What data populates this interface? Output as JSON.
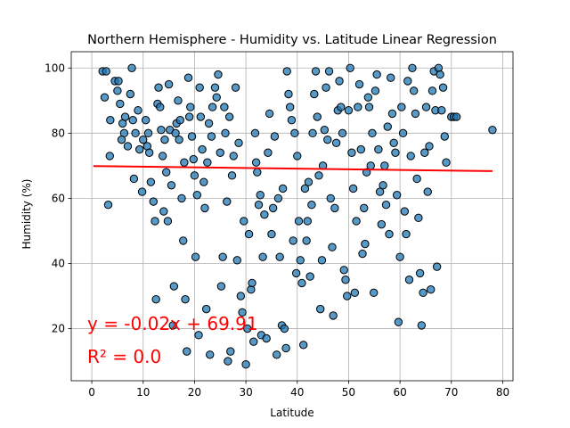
{
  "chart_data": {
    "type": "scatter",
    "title": "Northern Hemisphere - Humidity vs. Latitude Linear Regression",
    "xlabel": "Latitude",
    "ylabel": "Humidity (%)",
    "xlim": [
      -4,
      82
    ],
    "ylim": [
      4,
      105
    ],
    "xticks": [
      0,
      10,
      20,
      30,
      40,
      50,
      60,
      70,
      80
    ],
    "yticks": [
      20,
      40,
      60,
      80,
      100
    ],
    "grid": true,
    "point_color": "#1f77b4",
    "point_edge_color": "#000000",
    "point_alpha": 0.75,
    "regression": {
      "slope": -0.02,
      "intercept": 69.91,
      "x_range": [
        0.3,
        78
      ],
      "color": "#ff0000"
    },
    "annotations": [
      "y = -0.02x + 69.91",
      "R² = 0.0"
    ],
    "annotation_color": "#ff0000",
    "points": [
      [
        2.1,
        99
      ],
      [
        2.8,
        99
      ],
      [
        2.5,
        91
      ],
      [
        3.6,
        84
      ],
      [
        3.5,
        73
      ],
      [
        3.2,
        58
      ],
      [
        4.5,
        96
      ],
      [
        5,
        93
      ],
      [
        5.2,
        96
      ],
      [
        5.5,
        89
      ],
      [
        6,
        83
      ],
      [
        6.5,
        85
      ],
      [
        6.3,
        80
      ],
      [
        5.8,
        78
      ],
      [
        7,
        76
      ],
      [
        7.5,
        92
      ],
      [
        7.8,
        100
      ],
      [
        8,
        84
      ],
      [
        8.5,
        80
      ],
      [
        9,
        87
      ],
      [
        8.2,
        66
      ],
      [
        9.3,
        75
      ],
      [
        9.8,
        62
      ],
      [
        10,
        78
      ],
      [
        10.5,
        84
      ],
      [
        10.8,
        76
      ],
      [
        11,
        80
      ],
      [
        11.5,
        65
      ],
      [
        11.2,
        74
      ],
      [
        12,
        59
      ],
      [
        12.3,
        53
      ],
      [
        12.5,
        29
      ],
      [
        12.8,
        89
      ],
      [
        13,
        94
      ],
      [
        13.3,
        88
      ],
      [
        13.5,
        81
      ],
      [
        13.8,
        73
      ],
      [
        14,
        56
      ],
      [
        14.2,
        78
      ],
      [
        14.5,
        68
      ],
      [
        14.8,
        53
      ],
      [
        15,
        95
      ],
      [
        15.2,
        81
      ],
      [
        15.5,
        64
      ],
      [
        15.8,
        21
      ],
      [
        16,
        33
      ],
      [
        16.3,
        80
      ],
      [
        16.5,
        83
      ],
      [
        16.8,
        90
      ],
      [
        17,
        78
      ],
      [
        17.2,
        84
      ],
      [
        17.5,
        60
      ],
      [
        17.8,
        47
      ],
      [
        18,
        71
      ],
      [
        18.2,
        29
      ],
      [
        18.5,
        13
      ],
      [
        18.8,
        97
      ],
      [
        19,
        85
      ],
      [
        19.2,
        88
      ],
      [
        19.5,
        79
      ],
      [
        19.8,
        72
      ],
      [
        20,
        67
      ],
      [
        20.2,
        42
      ],
      [
        20.5,
        61
      ],
      [
        20.8,
        18
      ],
      [
        21,
        94
      ],
      [
        21.2,
        85
      ],
      [
        21.5,
        75
      ],
      [
        21.8,
        65
      ],
      [
        22,
        57
      ],
      [
        22.3,
        26
      ],
      [
        22.5,
        71
      ],
      [
        22.8,
        83
      ],
      [
        23,
        12
      ],
      [
        23.3,
        79
      ],
      [
        23.5,
        88
      ],
      [
        24,
        94
      ],
      [
        24.3,
        91
      ],
      [
        24.6,
        98
      ],
      [
        25,
        74
      ],
      [
        25.2,
        33
      ],
      [
        25.5,
        42
      ],
      [
        25.8,
        88
      ],
      [
        26,
        80
      ],
      [
        26.3,
        59
      ],
      [
        26.5,
        10
      ],
      [
        26.8,
        85
      ],
      [
        27,
        13
      ],
      [
        27.3,
        67
      ],
      [
        27.6,
        73
      ],
      [
        28,
        94
      ],
      [
        28.3,
        41
      ],
      [
        28.6,
        77
      ],
      [
        29,
        30
      ],
      [
        29.3,
        25
      ],
      [
        29.6,
        53
      ],
      [
        30,
        9
      ],
      [
        30.3,
        20
      ],
      [
        30.6,
        49
      ],
      [
        31,
        32
      ],
      [
        31.2,
        34
      ],
      [
        31.5,
        16
      ],
      [
        31.8,
        80
      ],
      [
        32,
        71
      ],
      [
        32.2,
        68
      ],
      [
        32.5,
        58
      ],
      [
        32.8,
        61
      ],
      [
        33,
        18
      ],
      [
        33.3,
        42
      ],
      [
        33.6,
        55
      ],
      [
        34,
        17
      ],
      [
        34.3,
        74
      ],
      [
        34.6,
        86
      ],
      [
        35,
        49
      ],
      [
        35.3,
        57
      ],
      [
        35.6,
        79
      ],
      [
        36,
        12
      ],
      [
        36.3,
        60
      ],
      [
        36.6,
        42
      ],
      [
        37,
        21
      ],
      [
        37.2,
        63
      ],
      [
        37.5,
        20
      ],
      [
        37.8,
        14
      ],
      [
        38,
        99
      ],
      [
        38.3,
        92
      ],
      [
        38.6,
        88
      ],
      [
        38.9,
        84
      ],
      [
        39.2,
        47
      ],
      [
        39.5,
        80
      ],
      [
        39.8,
        37
      ],
      [
        40,
        73
      ],
      [
        40.3,
        53
      ],
      [
        40.6,
        41
      ],
      [
        40.9,
        34
      ],
      [
        41.2,
        15
      ],
      [
        41.5,
        63
      ],
      [
        41.8,
        47
      ],
      [
        42,
        53
      ],
      [
        42.2,
        65
      ],
      [
        42.5,
        36
      ],
      [
        42.8,
        58
      ],
      [
        43,
        80
      ],
      [
        43.3,
        92
      ],
      [
        43.6,
        99
      ],
      [
        43.9,
        85
      ],
      [
        44.2,
        67
      ],
      [
        44.5,
        26
      ],
      [
        44.8,
        41
      ],
      [
        45,
        70
      ],
      [
        45.3,
        81
      ],
      [
        45.6,
        94
      ],
      [
        45.9,
        78
      ],
      [
        46.2,
        99
      ],
      [
        46.5,
        60
      ],
      [
        46.8,
        45
      ],
      [
        47,
        24
      ],
      [
        47.3,
        57
      ],
      [
        47.6,
        77
      ],
      [
        47.9,
        87
      ],
      [
        48.2,
        96
      ],
      [
        48.5,
        88
      ],
      [
        48.8,
        80
      ],
      [
        49.1,
        38
      ],
      [
        49.4,
        35
      ],
      [
        49.7,
        30
      ],
      [
        50,
        87
      ],
      [
        50.3,
        100
      ],
      [
        50.6,
        74
      ],
      [
        50.9,
        63
      ],
      [
        51.2,
        31
      ],
      [
        51.5,
        53
      ],
      [
        51.8,
        88
      ],
      [
        52.1,
        95
      ],
      [
        52.4,
        75
      ],
      [
        52.7,
        43
      ],
      [
        53,
        57
      ],
      [
        53.2,
        46
      ],
      [
        53.5,
        68
      ],
      [
        53.8,
        91
      ],
      [
        54,
        88
      ],
      [
        54.3,
        70
      ],
      [
        54.6,
        80
      ],
      [
        54.9,
        31
      ],
      [
        55.2,
        93
      ],
      [
        55.5,
        98
      ],
      [
        55.8,
        75
      ],
      [
        56.1,
        62
      ],
      [
        56.4,
        52
      ],
      [
        56.7,
        64
      ],
      [
        57,
        70
      ],
      [
        57.3,
        58
      ],
      [
        57.6,
        82
      ],
      [
        57.9,
        49
      ],
      [
        58.2,
        97
      ],
      [
        58.5,
        86
      ],
      [
        58.8,
        77
      ],
      [
        59.1,
        74
      ],
      [
        59.4,
        61
      ],
      [
        59.7,
        22
      ],
      [
        60,
        42
      ],
      [
        60.3,
        88
      ],
      [
        60.6,
        80
      ],
      [
        60.9,
        56
      ],
      [
        61.2,
        49
      ],
      [
        61.5,
        96
      ],
      [
        61.8,
        35
      ],
      [
        62.1,
        73
      ],
      [
        62.4,
        100
      ],
      [
        62.7,
        93
      ],
      [
        63,
        86
      ],
      [
        63.3,
        66
      ],
      [
        63.6,
        54
      ],
      [
        63.9,
        37
      ],
      [
        64.2,
        21
      ],
      [
        64.5,
        31
      ],
      [
        64.8,
        74
      ],
      [
        65.1,
        88
      ],
      [
        65.4,
        62
      ],
      [
        65.7,
        76
      ],
      [
        66,
        32
      ],
      [
        66.3,
        93
      ],
      [
        66.6,
        99
      ],
      [
        66.9,
        87
      ],
      [
        67.2,
        39
      ],
      [
        67.5,
        100
      ],
      [
        67.8,
        98
      ],
      [
        68.1,
        87
      ],
      [
        68.4,
        94
      ],
      [
        68.7,
        79
      ],
      [
        69,
        71
      ],
      [
        70,
        85
      ],
      [
        70.5,
        85
      ],
      [
        71,
        85
      ],
      [
        78,
        81
      ]
    ]
  }
}
